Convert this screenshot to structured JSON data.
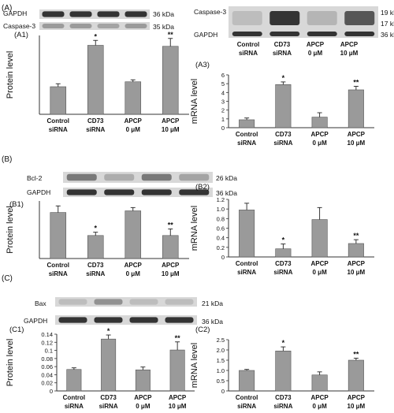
{
  "figure": {
    "section_labels": {
      "A": "(A)",
      "B": "(B)",
      "C": "(C)"
    },
    "blot_colors": {
      "band": "#2b2b2b",
      "background": "#d8d8d8"
    },
    "bar_color": "#9a9a9a"
  },
  "blots": [
    {
      "id": "A1",
      "bands": [
        {
          "protein": "GAPDH",
          "size": "36 kDa"
        },
        {
          "protein": "Caspase-3",
          "size": "35 kDa"
        }
      ]
    },
    {
      "id": "A2",
      "bands": [
        {
          "protein": "Caspase-3",
          "size": "19 kDa",
          "size2": "17 kDa"
        },
        {
          "protein": "GAPDH",
          "size": "36 kDa"
        }
      ],
      "lanes": [
        {
          "line1": "Control",
          "line2": "siRNA"
        },
        {
          "line1": "CD73",
          "line2": "siRNA"
        },
        {
          "line1": "APCP",
          "line2": "0 μM"
        },
        {
          "line1": "APCP",
          "line2": "10 μM"
        }
      ]
    },
    {
      "id": "B1",
      "bands": [
        {
          "protein": "Bcl-2",
          "size": "26 kDa"
        },
        {
          "protein": "GAPDH",
          "size": "36 kDa"
        }
      ]
    },
    {
      "id": "C1",
      "bands": [
        {
          "protein": "Bax",
          "size": "21 kDa"
        },
        {
          "protein": "GAPDH",
          "size": "36 kDa"
        }
      ]
    }
  ],
  "chart_data": [
    {
      "id": "A1",
      "panel_label": "(A1)",
      "type": "bar",
      "categories": [
        {
          "line1": "Control",
          "line2": "siRNA"
        },
        {
          "line1": "CD73",
          "line2": "siRNA"
        },
        {
          "line1": "APCP",
          "line2": "0 μM"
        },
        {
          "line1": "APCP",
          "line2": "10 μM"
        }
      ],
      "values": [
        0.28,
        0.7,
        0.33,
        0.69
      ],
      "errors": [
        0.03,
        0.05,
        0.02,
        0.08
      ],
      "significance": [
        "",
        "*",
        "",
        "**"
      ],
      "ylabel": "Protein level",
      "ylim": [
        0,
        0.8
      ],
      "yticks": [],
      "tick_labels": []
    },
    {
      "id": "A3",
      "panel_label": "(A3)",
      "type": "bar",
      "categories": [
        {
          "line1": "Control",
          "line2": "siRNA"
        },
        {
          "line1": "CD73",
          "line2": "siRNA"
        },
        {
          "line1": "APCP",
          "line2": "0 μM"
        },
        {
          "line1": "APCP",
          "line2": "10 μM"
        }
      ],
      "values": [
        0.9,
        4.9,
        1.2,
        4.3
      ],
      "errors": [
        0.2,
        0.3,
        0.5,
        0.4
      ],
      "significance": [
        "",
        "*",
        "",
        "**"
      ],
      "ylabel": "mRNA level",
      "ylim": [
        0,
        6
      ],
      "yticks": [
        0,
        1,
        2,
        3,
        4,
        5,
        6
      ],
      "tick_labels": [
        "0",
        "1",
        "2",
        "3",
        "4",
        "5",
        "6"
      ]
    },
    {
      "id": "B1",
      "panel_label": "(B1)",
      "type": "bar",
      "categories": [
        {
          "line1": "Control",
          "line2": "siRNA"
        },
        {
          "line1": "CD73",
          "line2": "siRNA"
        },
        {
          "line1": "APCP",
          "line2": "0 μM"
        },
        {
          "line1": "APCP",
          "line2": "10 μM"
        }
      ],
      "values": [
        0.28,
        0.14,
        0.29,
        0.14
      ],
      "errors": [
        0.04,
        0.02,
        0.02,
        0.04
      ],
      "significance": [
        "",
        "*",
        "",
        "**"
      ],
      "ylabel": "Protein level",
      "ylim": [
        0,
        0.35
      ],
      "yticks": [],
      "tick_labels": []
    },
    {
      "id": "B2",
      "panel_label": "(B2)",
      "type": "bar",
      "categories": [
        {
          "line1": "Control",
          "line2": "siRNA"
        },
        {
          "line1": "CD73",
          "line2": "siRNA"
        },
        {
          "line1": "APCP",
          "line2": "0 μM"
        },
        {
          "line1": "APCP",
          "line2": "10 μM"
        }
      ],
      "values": [
        0.98,
        0.17,
        0.78,
        0.28
      ],
      "errors": [
        0.14,
        0.1,
        0.25,
        0.08
      ],
      "significance": [
        "",
        "*",
        "",
        "**"
      ],
      "ylabel": "mRNA level",
      "ylim": [
        0,
        1.2
      ],
      "yticks": [
        0,
        0.2,
        0.4,
        0.6,
        0.8,
        1.0,
        1.2
      ],
      "tick_labels": [
        "0",
        "0.2",
        "0.4",
        "0.6",
        "0.8",
        "1.0",
        "1.2"
      ]
    },
    {
      "id": "C1",
      "panel_label": "(C1)",
      "type": "bar",
      "categories": [
        {
          "line1": "Control",
          "line2": "siRNA"
        },
        {
          "line1": "CD73",
          "line2": "siRNA"
        },
        {
          "line1": "APCP",
          "line2": "0 μM"
        },
        {
          "line1": "APCP",
          "line2": "10 μM"
        }
      ],
      "values": [
        0.053,
        0.128,
        0.052,
        0.101
      ],
      "errors": [
        0.004,
        0.01,
        0.007,
        0.02
      ],
      "significance": [
        "",
        "*",
        "",
        "**"
      ],
      "ylabel": "Protein level",
      "ylim": [
        0,
        0.14
      ],
      "yticks": [
        0,
        0.02,
        0.04,
        0.06,
        0.08,
        0.1,
        0.12,
        0.14
      ],
      "tick_labels": [
        "0",
        "0.02",
        "0.04",
        "0.06",
        "0.08",
        "0.1",
        "0.12",
        "0.14"
      ]
    },
    {
      "id": "C2",
      "panel_label": "(C2)",
      "type": "bar",
      "categories": [
        {
          "line1": "Control",
          "line2": "siRNA"
        },
        {
          "line1": "CD73",
          "line2": "siRNA"
        },
        {
          "line1": "APCP",
          "line2": "0 μM"
        },
        {
          "line1": "APCP",
          "line2": "10 μM"
        }
      ],
      "values": [
        1.0,
        1.95,
        0.78,
        1.5
      ],
      "errors": [
        0.05,
        0.2,
        0.15,
        0.1
      ],
      "significance": [
        "",
        "*",
        "",
        "**"
      ],
      "ylabel": "mRNA level",
      "ylim": [
        0,
        2.5
      ],
      "yticks": [
        0,
        0.5,
        1.0,
        1.5,
        2.0,
        2.5
      ],
      "tick_labels": [
        "0",
        "0.5",
        "1.0",
        "1.5",
        "2.0",
        "2.5"
      ]
    }
  ]
}
